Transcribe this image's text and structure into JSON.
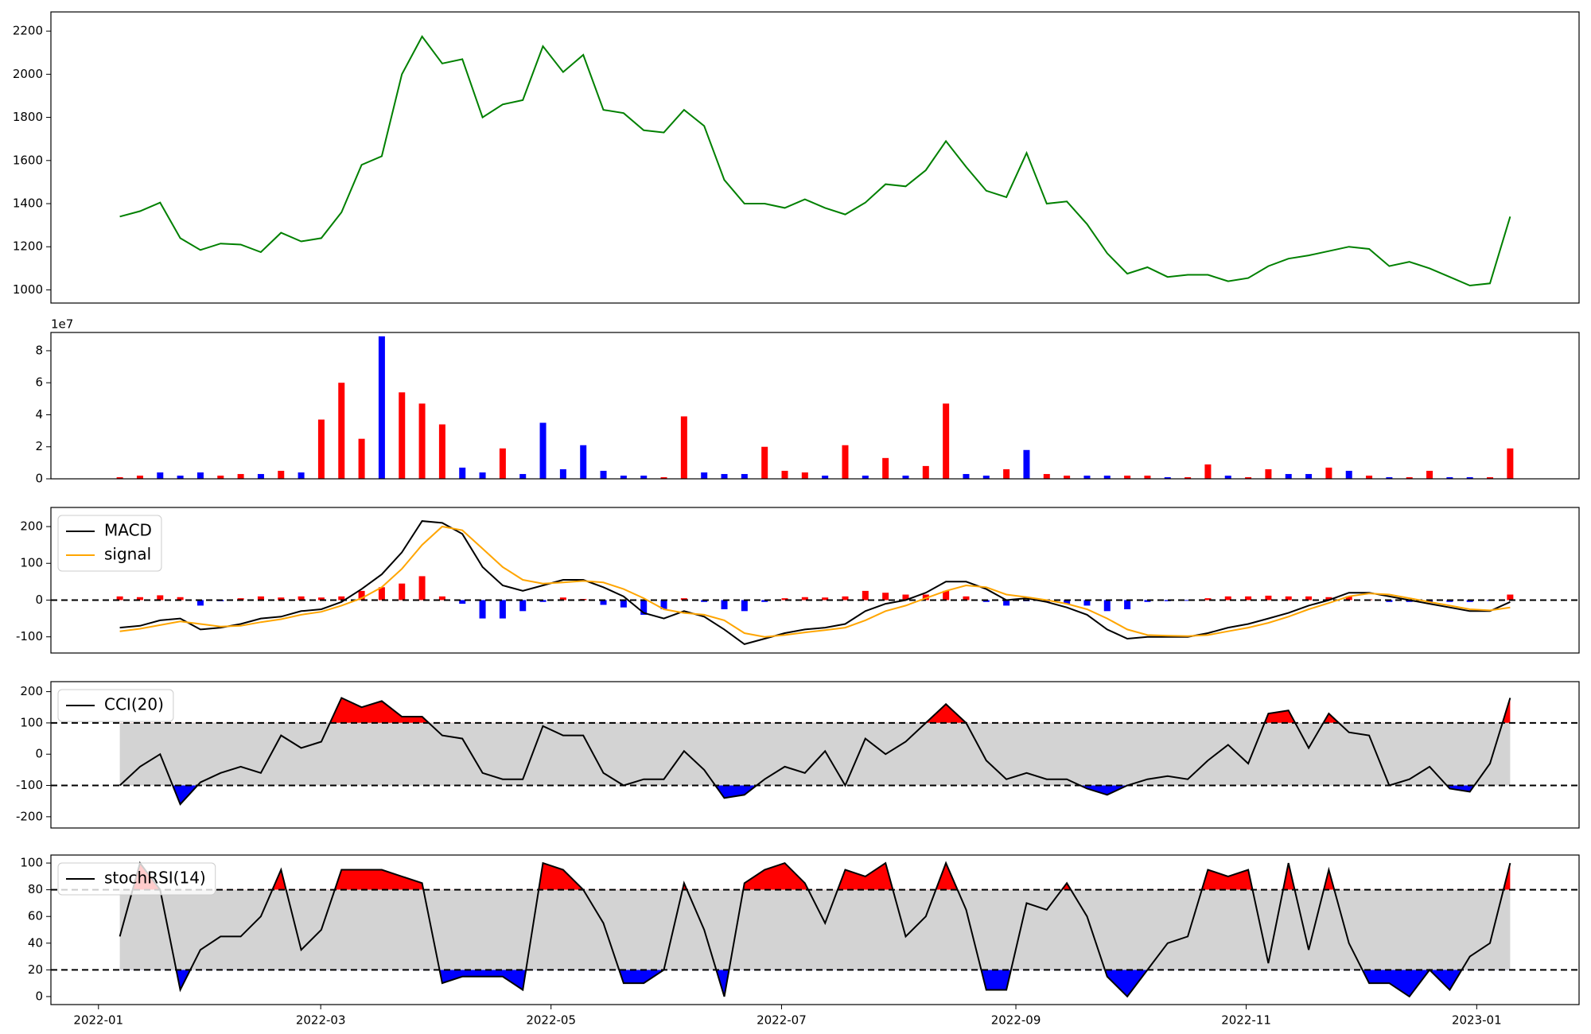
{
  "chart_data": [
    {
      "type": "line",
      "color": "green",
      "values": [
        1340,
        1365,
        1405,
        1240,
        1185,
        1215,
        1210,
        1175,
        1265,
        1225,
        1240,
        1360,
        1580,
        1620,
        2000,
        2175,
        2050,
        2070,
        1800,
        1860,
        1880,
        2130,
        2010,
        2090,
        1835,
        1820,
        1740,
        1730,
        1835,
        1760,
        1510,
        1400,
        1400,
        1380,
        1420,
        1380,
        1350,
        1405,
        1490,
        1480,
        1555,
        1690,
        1570,
        1460,
        1430,
        1635,
        1400,
        1410,
        1305,
        1170,
        1075,
        1105,
        1060,
        1070,
        1070,
        1040,
        1055,
        1110,
        1145,
        1160,
        1180,
        1200,
        1190,
        1110,
        1130,
        1100,
        1060,
        1020,
        1030,
        1340
      ],
      "xlim": [
        -3.42,
        72.42
      ],
      "ylim": [
        939,
        2289
      ],
      "yticks": [
        1000,
        1200,
        1400,
        1600,
        1800,
        2000,
        2200
      ]
    },
    {
      "type": "bar",
      "offset_label": "1e7",
      "values": [
        0.1,
        0.2,
        0.4,
        0.2,
        0.4,
        0.2,
        0.3,
        0.3,
        0.5,
        0.4,
        3.7,
        6.0,
        2.5,
        8.9,
        5.4,
        4.7,
        3.4,
        0.7,
        0.4,
        1.9,
        0.3,
        3.5,
        0.6,
        2.1,
        0.5,
        0.2,
        0.2,
        0.1,
        3.9,
        0.4,
        0.3,
        0.3,
        2.0,
        0.5,
        0.4,
        0.2,
        2.1,
        0.2,
        1.3,
        0.2,
        0.8,
        4.7,
        0.3,
        0.2,
        0.6,
        1.8,
        0.3,
        0.2,
        0.2,
        0.2,
        0.2,
        0.2,
        0.1,
        0.1,
        0.9,
        0.2,
        0.1,
        0.6,
        0.3,
        0.3,
        0.7,
        0.5,
        0.2,
        0.1,
        0.1,
        0.5,
        0.1,
        0.1,
        0.1,
        1.9
      ],
      "colors": [
        "red",
        "red",
        "blue",
        "blue",
        "blue",
        "red",
        "red",
        "blue",
        "red",
        "blue",
        "red",
        "red",
        "red",
        "blue",
        "red",
        "red",
        "red",
        "blue",
        "blue",
        "red",
        "blue",
        "blue",
        "blue",
        "blue",
        "blue",
        "blue",
        "blue",
        "red",
        "red",
        "blue",
        "blue",
        "blue",
        "red",
        "red",
        "red",
        "blue",
        "red",
        "blue",
        "red",
        "blue",
        "red",
        "red",
        "blue",
        "blue",
        "red",
        "blue",
        "red",
        "red",
        "blue",
        "blue",
        "red",
        "red",
        "blue",
        "red",
        "red",
        "blue",
        "red",
        "red",
        "blue",
        "blue",
        "red",
        "blue",
        "red",
        "blue",
        "red",
        "red",
        "blue",
        "blue",
        "red",
        "red"
      ],
      "xlim": [
        -3.42,
        72.42
      ],
      "ylim": [
        0,
        9.14
      ],
      "yticks": [
        0,
        2,
        4,
        6,
        8
      ]
    },
    {
      "type": "macd",
      "legend": "upper left",
      "zero_line": true,
      "series": [
        {
          "name": "MACD",
          "color": "black",
          "values": [
            -75,
            -70,
            -55,
            -50,
            -80,
            -75,
            -65,
            -50,
            -45,
            -30,
            -25,
            -5,
            30,
            70,
            130,
            215,
            210,
            180,
            90,
            40,
            25,
            40,
            55,
            55,
            35,
            10,
            -35,
            -50,
            -30,
            -45,
            -80,
            -120,
            -105,
            -90,
            -80,
            -75,
            -65,
            -30,
            -10,
            0,
            20,
            50,
            50,
            30,
            0,
            5,
            -5,
            -20,
            -40,
            -80,
            -105,
            -100,
            -100,
            -100,
            -90,
            -75,
            -65,
            -50,
            -35,
            -15,
            0,
            20,
            20,
            10,
            0,
            -10,
            -20,
            -30,
            -30,
            -5
          ]
        },
        {
          "name": "signal",
          "color": "orange",
          "values": [
            -85,
            -78,
            -68,
            -58,
            -65,
            -72,
            -70,
            -60,
            -52,
            -40,
            -32,
            -15,
            5,
            35,
            85,
            150,
            200,
            190,
            140,
            90,
            55,
            45,
            48,
            52,
            48,
            30,
            5,
            -25,
            -35,
            -40,
            -55,
            -90,
            -100,
            -95,
            -88,
            -82,
            -75,
            -55,
            -30,
            -15,
            5,
            25,
            40,
            35,
            15,
            8,
            0,
            -10,
            -25,
            -50,
            -80,
            -95,
            -97,
            -98,
            -95,
            -85,
            -75,
            -62,
            -45,
            -25,
            -8,
            10,
            18,
            15,
            5,
            -5,
            -15,
            -25,
            -28,
            -20
          ]
        }
      ],
      "histogram": {
        "pos_color": "red",
        "neg_color": "blue",
        "values": [
          10,
          8,
          13,
          8,
          -15,
          -3,
          5,
          10,
          7,
          10,
          7,
          10,
          25,
          35,
          45,
          65,
          10,
          -10,
          -50,
          -50,
          -30,
          -5,
          7,
          3,
          -13,
          -20,
          -40,
          -25,
          5,
          -5,
          -25,
          -30,
          -5,
          5,
          8,
          7,
          10,
          25,
          20,
          15,
          15,
          25,
          10,
          -5,
          -15,
          -3,
          -5,
          -10,
          -15,
          -30,
          -25,
          -5,
          -3,
          -2,
          5,
          10,
          10,
          12,
          10,
          10,
          8,
          10,
          2,
          -5,
          -5,
          -5,
          -5,
          -5,
          -2,
          15
        ]
      },
      "xlim": [
        -3.42,
        72.42
      ],
      "ylim": [
        -144,
        252
      ],
      "yticks": [
        -100,
        0,
        100,
        200
      ]
    },
    {
      "type": "oscillator",
      "legend": "upper left",
      "bands": [
        -100,
        100
      ],
      "band_color": "lightgray",
      "upper_color": "red",
      "lower_color": "blue",
      "series": [
        {
          "name": "CCI(20)",
          "color": "black",
          "values": [
            -100,
            -40,
            0,
            -160,
            -90,
            -60,
            -40,
            -60,
            60,
            20,
            40,
            180,
            150,
            170,
            120,
            120,
            60,
            50,
            -60,
            -80,
            -80,
            90,
            60,
            60,
            -60,
            -100,
            -80,
            -80,
            10,
            -50,
            -140,
            -130,
            -80,
            -40,
            -60,
            10,
            -100,
            50,
            0,
            40,
            100,
            160,
            100,
            -20,
            -80,
            -60,
            -80,
            -80,
            -110,
            -130,
            -100,
            -80,
            -70,
            -80,
            -20,
            30,
            -30,
            130,
            140,
            20,
            130,
            70,
            60,
            -100,
            -80,
            -40,
            -110,
            -120,
            -30,
            180
          ]
        }
      ],
      "xlim": [
        -3.42,
        72.42
      ],
      "ylim": [
        -236,
        232
      ],
      "yticks": [
        -200,
        -100,
        0,
        100,
        200
      ]
    },
    {
      "type": "oscillator",
      "legend": "upper left",
      "bands": [
        20,
        80
      ],
      "band_color": "lightgray",
      "upper_color": "red",
      "lower_color": "blue",
      "series": [
        {
          "name": "stochRSI(14)",
          "color": "black",
          "values": [
            45,
            100,
            80,
            5,
            35,
            45,
            45,
            60,
            95,
            35,
            50,
            95,
            95,
            95,
            90,
            85,
            10,
            15,
            15,
            15,
            5,
            100,
            95,
            80,
            55,
            10,
            10,
            20,
            85,
            50,
            0,
            85,
            95,
            100,
            85,
            55,
            95,
            90,
            100,
            45,
            60,
            100,
            65,
            5,
            5,
            70,
            65,
            85,
            60,
            15,
            0,
            20,
            40,
            45,
            95,
            90,
            95,
            25,
            100,
            35,
            95,
            40,
            10,
            10,
            0,
            20,
            5,
            30,
            40,
            100
          ]
        }
      ],
      "xlim": [
        -3.42,
        72.42
      ],
      "ylim": [
        -6,
        106
      ],
      "yticks": [
        0,
        20,
        40,
        60,
        80,
        100
      ],
      "xticks": [
        {
          "value": -1.06,
          "label": "2022-01"
        },
        {
          "value": 9.97,
          "label": "2022-03"
        },
        {
          "value": 21.4,
          "label": "2022-05"
        },
        {
          "value": 32.84,
          "label": "2022-07"
        },
        {
          "value": 44.47,
          "label": "2022-09"
        },
        {
          "value": 55.9,
          "label": "2022-11"
        },
        {
          "value": 67.34,
          "label": "2023-01"
        }
      ]
    }
  ]
}
